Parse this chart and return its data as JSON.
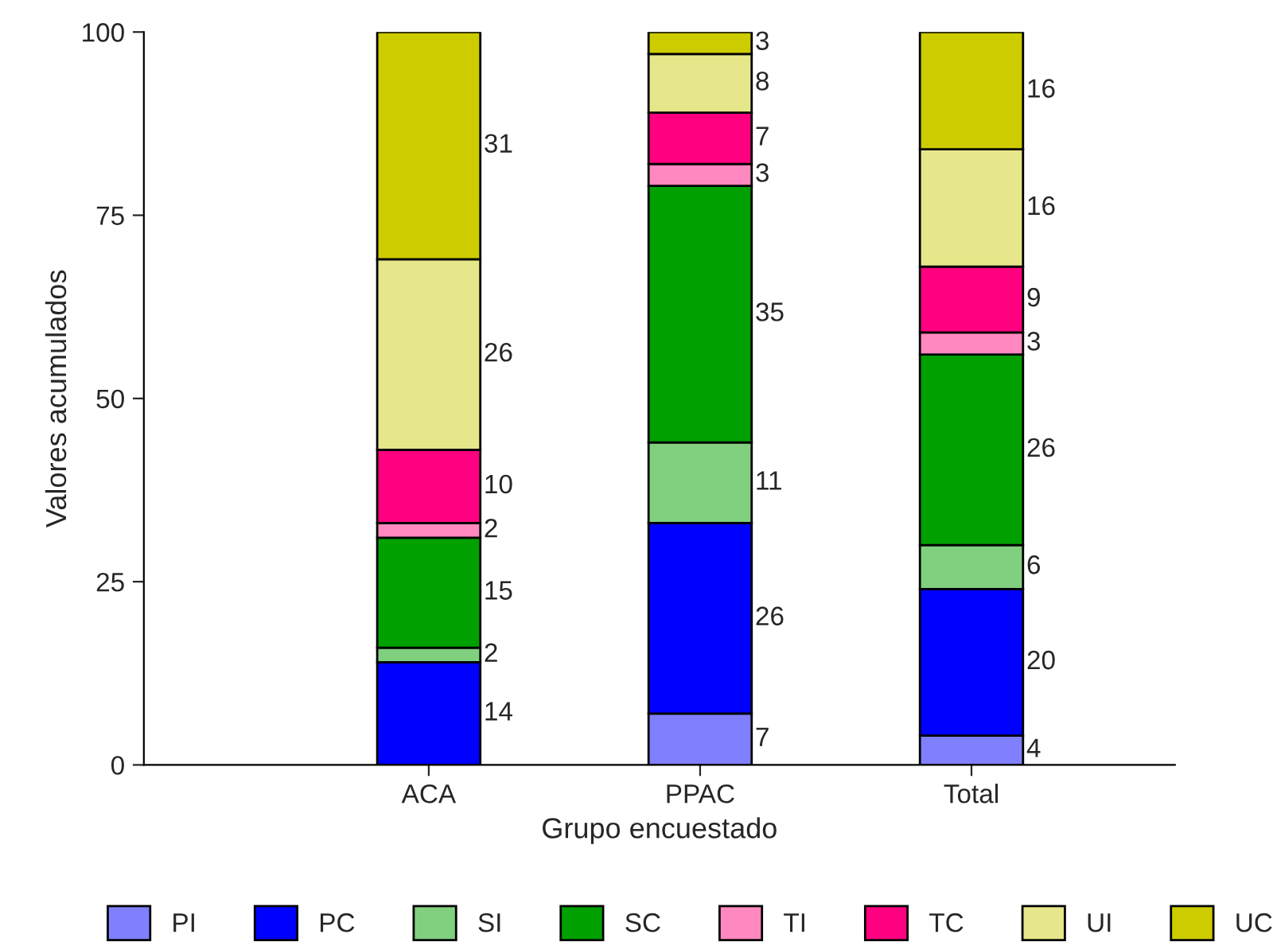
{
  "chart_data": {
    "type": "bar",
    "stacked": true,
    "xlabel": "Grupo encuestado",
    "ylabel": "Valores acumulados",
    "categories": [
      "ACA",
      "PPAC",
      "Total"
    ],
    "ylim": [
      0,
      100
    ],
    "yticks": [
      0,
      25,
      50,
      75,
      100
    ],
    "grid": false,
    "legend": "bottom",
    "series": [
      {
        "name": "PI",
        "color": "#8080ff",
        "values": [
          0,
          7,
          4
        ],
        "value_labels": [
          null,
          "7",
          "4"
        ]
      },
      {
        "name": "PC",
        "color": "#0000ff",
        "values": [
          14,
          26,
          20
        ],
        "value_labels": [
          "14",
          "26",
          "20"
        ]
      },
      {
        "name": "SI",
        "color": "#80d080",
        "values": [
          2,
          11,
          6
        ],
        "value_labels": [
          "2",
          "11",
          "6"
        ]
      },
      {
        "name": "SC",
        "color": "#00a000",
        "values": [
          15,
          35,
          26
        ],
        "value_labels": [
          "15",
          "35",
          "26"
        ]
      },
      {
        "name": "TI",
        "color": "#ff88c0",
        "values": [
          2,
          3,
          3
        ],
        "value_labels": [
          "2",
          "3",
          "3"
        ]
      },
      {
        "name": "TC",
        "color": "#ff0080",
        "values": [
          10,
          7,
          9
        ],
        "value_labels": [
          "10",
          "7",
          "9"
        ]
      },
      {
        "name": "UI",
        "color": "#e6e68a",
        "values": [
          26,
          8,
          16
        ],
        "value_labels": [
          "26",
          "8",
          "16"
        ]
      },
      {
        "name": "UC",
        "color": "#cccc00",
        "values": [
          31,
          3,
          16
        ],
        "value_labels": [
          "31",
          "3",
          "16"
        ]
      }
    ]
  }
}
